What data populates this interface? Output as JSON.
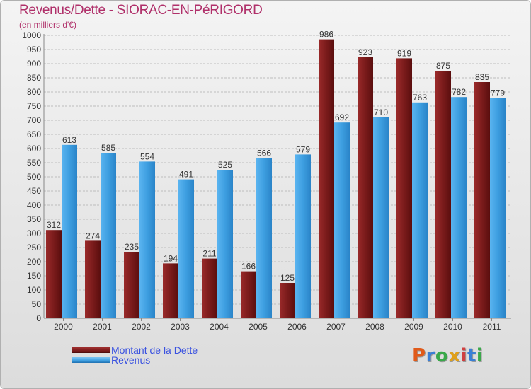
{
  "title": "Revenus/Dette - SIORAC-EN-PéRIGORD",
  "subtitle": "(en milliers d'€)",
  "legend": {
    "debt_label": "Montant de la Dette",
    "revenue_label": "Revenus"
  },
  "logo": {
    "letters": [
      "P",
      "r",
      "o",
      "x",
      "i",
      "t",
      "i"
    ],
    "colors": [
      "#e05a1a",
      "#3a7fd5",
      "#3aa84a",
      "#e0a01a",
      "#d04040",
      "#3a7fd5",
      "#3aa84a"
    ]
  },
  "colors": {
    "debt": "#7a1b1b",
    "revenue": "#3d9ee0",
    "title": "#b0306a"
  },
  "chart_data": {
    "type": "bar",
    "title": "Revenus/Dette - SIORAC-EN-PéRIGORD",
    "subtitle": "(en milliers d'€)",
    "categories": [
      "2000",
      "2001",
      "2002",
      "2003",
      "2004",
      "2005",
      "2006",
      "2007",
      "2008",
      "2009",
      "2010",
      "2011"
    ],
    "series": [
      {
        "name": "Montant de la Dette",
        "values": [
          312,
          274,
          235,
          194,
          211,
          166,
          125,
          986,
          923,
          919,
          875,
          835
        ]
      },
      {
        "name": "Revenus",
        "values": [
          613,
          585,
          554,
          491,
          525,
          566,
          579,
          692,
          710,
          763,
          782,
          779
        ]
      }
    ],
    "ylim": [
      0,
      1000
    ],
    "ytick_step": 50,
    "grid": true,
    "legend": "bottom-left"
  }
}
